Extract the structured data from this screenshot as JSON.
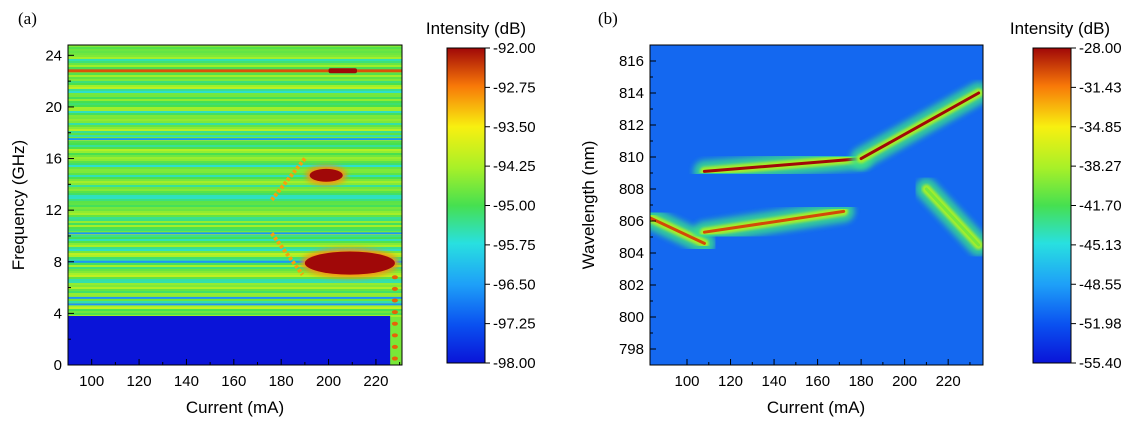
{
  "chart_data": [
    {
      "type": "heatmap",
      "panel_label": "(a)",
      "xlabel": "Current (mA)",
      "ylabel": "Frequency (GHz)",
      "xlim": [
        90,
        231
      ],
      "ylim": [
        0,
        24.8
      ],
      "xticks": [
        "100",
        "120",
        "140",
        "160",
        "180",
        "200",
        "220"
      ],
      "yticks": [
        "0",
        "4",
        "8",
        "12",
        "16",
        "20",
        "24"
      ],
      "colorbar": {
        "title": "Intensity (dB)",
        "min": -98.0,
        "max": -92.0,
        "ticks": [
          "-92.00",
          "-92.75",
          "-93.50",
          "-94.25",
          "-95.00",
          "-95.75",
          "-96.50",
          "-97.25",
          "-98.00"
        ]
      },
      "features": [
        {
          "label": "low-frequency floor",
          "x": [
            90,
            226
          ],
          "y": [
            0,
            3.8
          ],
          "intensity": -98.0
        },
        {
          "label": "horizontal line",
          "x": [
            90,
            231
          ],
          "y": 22.8,
          "intensity": -92.5
        },
        {
          "label": "peak",
          "x": [
            200,
            212
          ],
          "y": 22.8,
          "intensity": -92.0
        },
        {
          "label": "peak",
          "x": [
            192,
            206
          ],
          "y": [
            14.2,
            15.2
          ],
          "intensity": -92.0
        },
        {
          "label": "peak",
          "x": [
            190,
            228
          ],
          "y": [
            7.0,
            8.8
          ],
          "intensity": -92.0
        },
        {
          "label": "diagonal branch",
          "x": [
            176,
            190
          ],
          "y": [
            12.8,
            16.0
          ],
          "intensity": -93.0
        },
        {
          "label": "diagonal branch",
          "x": [
            176,
            189
          ],
          "y": [
            10.2,
            7.0
          ],
          "intensity": -93.0
        }
      ]
    },
    {
      "type": "heatmap",
      "panel_label": "(b)",
      "xlabel": "Current (mA)",
      "ylabel": "Wavelength (nm)",
      "xlim": [
        83,
        236
      ],
      "ylim": [
        797,
        817
      ],
      "xticks": [
        "100",
        "120",
        "140",
        "160",
        "180",
        "200",
        "220"
      ],
      "yticks": [
        "798",
        "800",
        "802",
        "804",
        "806",
        "808",
        "810",
        "812",
        "814",
        "816"
      ],
      "colorbar": {
        "title": "Intensity (dB)",
        "min": -55.4,
        "max": -28.0,
        "ticks": [
          "-28.00",
          "-31.43",
          "-34.85",
          "-38.27",
          "-41.70",
          "-45.13",
          "-48.55",
          "-51.98",
          "-55.40"
        ]
      },
      "features": [
        {
          "label": "mode",
          "x": [
            83,
            108
          ],
          "y": [
            806.2,
            804.6
          ],
          "intensity": -30
        },
        {
          "label": "mode",
          "x": [
            108,
            172
          ],
          "y": [
            805.3,
            806.6
          ],
          "intensity": -30
        },
        {
          "label": "mode",
          "x": [
            108,
            180
          ],
          "y": [
            809.1,
            809.9
          ],
          "intensity": -28
        },
        {
          "label": "mode",
          "x": [
            180,
            234
          ],
          "y": [
            809.9,
            814.0
          ],
          "intensity": -28
        },
        {
          "label": "mode",
          "x": [
            210,
            234
          ],
          "y": [
            808.0,
            804.5
          ],
          "intensity": -40
        }
      ]
    }
  ]
}
